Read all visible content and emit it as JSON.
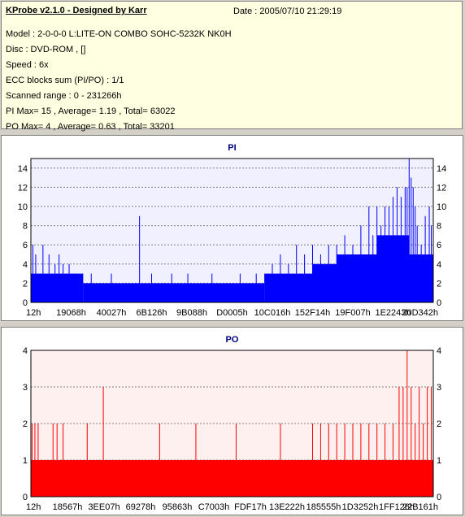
{
  "info": {
    "title": "KProbe v2.1.0 - Designed by Karr",
    "date": "Date : 2005/07/10 21:29:19",
    "lines": [
      "Model : 2-0-0-0 L:LITE-ON COMBO SOHC-5232K NK0H",
      "Disc : DVD-ROM ,  []",
      "Speed : 6x",
      "ECC blocks sum (PI/PO) : 1/1",
      "Scanned range : 0 - 231266h",
      "PI Max= 15 , Average= 1.19 , Total= 63022",
      "PO Max= 4 , Average= 0.63 , Total= 33201"
    ]
  },
  "colors": {
    "pi_bar": "#0000ff",
    "po_bar": "#ff0000",
    "pi_bg": "#f0f0ff",
    "po_bg": "#fff0f0",
    "title": "#000080"
  },
  "chart_data": [
    {
      "type": "bar",
      "title": "PI",
      "ylim": [
        0,
        15
      ],
      "y_ticks": [
        "0",
        "2",
        "4",
        "6",
        "8",
        "10",
        "12",
        "14"
      ],
      "x_ticks": [
        "12h",
        "19068h",
        "40027h",
        "6B126h",
        "9B088h",
        "D0005h",
        "10C016h",
        "152F14h",
        "19F007h",
        "1E2243h",
        "20D342h"
      ],
      "grid": true,
      "baseline_segments": [
        {
          "from": 0.0,
          "to": 0.06,
          "value": 3
        },
        {
          "from": 0.06,
          "to": 0.13,
          "value": 3
        },
        {
          "from": 0.13,
          "to": 0.52,
          "value": 2
        },
        {
          "from": 0.52,
          "to": 0.58,
          "value": 2
        },
        {
          "from": 0.58,
          "to": 0.7,
          "value": 3
        },
        {
          "from": 0.7,
          "to": 0.76,
          "value": 4
        },
        {
          "from": 0.76,
          "to": 0.86,
          "value": 5
        },
        {
          "from": 0.86,
          "to": 0.94,
          "value": 7
        },
        {
          "from": 0.94,
          "to": 1.0,
          "value": 5
        }
      ],
      "spikes": [
        {
          "x": 0.005,
          "value": 6
        },
        {
          "x": 0.012,
          "value": 5
        },
        {
          "x": 0.03,
          "value": 6
        },
        {
          "x": 0.045,
          "value": 5
        },
        {
          "x": 0.06,
          "value": 4
        },
        {
          "x": 0.07,
          "value": 5
        },
        {
          "x": 0.08,
          "value": 4
        },
        {
          "x": 0.095,
          "value": 4
        },
        {
          "x": 0.11,
          "value": 3
        },
        {
          "x": 0.15,
          "value": 3
        },
        {
          "x": 0.2,
          "value": 3
        },
        {
          "x": 0.27,
          "value": 9
        },
        {
          "x": 0.3,
          "value": 3
        },
        {
          "x": 0.35,
          "value": 3
        },
        {
          "x": 0.39,
          "value": 3
        },
        {
          "x": 0.45,
          "value": 3
        },
        {
          "x": 0.52,
          "value": 3
        },
        {
          "x": 0.56,
          "value": 3
        },
        {
          "x": 0.6,
          "value": 4
        },
        {
          "x": 0.62,
          "value": 5
        },
        {
          "x": 0.64,
          "value": 4
        },
        {
          "x": 0.66,
          "value": 6
        },
        {
          "x": 0.68,
          "value": 5
        },
        {
          "x": 0.7,
          "value": 6
        },
        {
          "x": 0.72,
          "value": 5
        },
        {
          "x": 0.74,
          "value": 6
        },
        {
          "x": 0.76,
          "value": 6
        },
        {
          "x": 0.78,
          "value": 7
        },
        {
          "x": 0.8,
          "value": 6
        },
        {
          "x": 0.82,
          "value": 8
        },
        {
          "x": 0.84,
          "value": 10
        },
        {
          "x": 0.85,
          "value": 7
        },
        {
          "x": 0.86,
          "value": 10
        },
        {
          "x": 0.87,
          "value": 8
        },
        {
          "x": 0.88,
          "value": 10
        },
        {
          "x": 0.89,
          "value": 10
        },
        {
          "x": 0.9,
          "value": 11
        },
        {
          "x": 0.91,
          "value": 12
        },
        {
          "x": 0.92,
          "value": 11
        },
        {
          "x": 0.93,
          "value": 12
        },
        {
          "x": 0.935,
          "value": 12
        },
        {
          "x": 0.94,
          "value": 15
        },
        {
          "x": 0.945,
          "value": 13
        },
        {
          "x": 0.95,
          "value": 12
        },
        {
          "x": 0.955,
          "value": 10
        },
        {
          "x": 0.96,
          "value": 8
        },
        {
          "x": 0.97,
          "value": 6
        },
        {
          "x": 0.98,
          "value": 9
        },
        {
          "x": 0.99,
          "value": 10
        },
        {
          "x": 0.995,
          "value": 8
        }
      ]
    },
    {
      "type": "bar",
      "title": "PO",
      "ylim": [
        0,
        4
      ],
      "y_ticks": [
        "0",
        "1",
        "2",
        "3",
        "4"
      ],
      "x_ticks": [
        "12h",
        "18567h",
        "3EE07h",
        "69278h",
        "95863h",
        "C7003h",
        "FDF17h",
        "13E222h",
        "185555h",
        "1D3252h",
        "1FF126h",
        "22B161h"
      ],
      "grid": true,
      "baseline_segments": [
        {
          "from": 0.0,
          "to": 1.0,
          "value": 1
        }
      ],
      "spikes": [
        {
          "x": 0.003,
          "value": 2
        },
        {
          "x": 0.01,
          "value": 2
        },
        {
          "x": 0.018,
          "value": 2
        },
        {
          "x": 0.055,
          "value": 2
        },
        {
          "x": 0.065,
          "value": 2
        },
        {
          "x": 0.08,
          "value": 2
        },
        {
          "x": 0.14,
          "value": 2
        },
        {
          "x": 0.18,
          "value": 3
        },
        {
          "x": 0.32,
          "value": 2
        },
        {
          "x": 0.41,
          "value": 2
        },
        {
          "x": 0.51,
          "value": 2
        },
        {
          "x": 0.62,
          "value": 2
        },
        {
          "x": 0.7,
          "value": 2
        },
        {
          "x": 0.72,
          "value": 2
        },
        {
          "x": 0.74,
          "value": 2
        },
        {
          "x": 0.76,
          "value": 2
        },
        {
          "x": 0.78,
          "value": 2
        },
        {
          "x": 0.8,
          "value": 2
        },
        {
          "x": 0.82,
          "value": 2
        },
        {
          "x": 0.84,
          "value": 2
        },
        {
          "x": 0.86,
          "value": 2
        },
        {
          "x": 0.88,
          "value": 2
        },
        {
          "x": 0.9,
          "value": 2
        },
        {
          "x": 0.915,
          "value": 3
        },
        {
          "x": 0.925,
          "value": 3
        },
        {
          "x": 0.935,
          "value": 4
        },
        {
          "x": 0.945,
          "value": 3
        },
        {
          "x": 0.955,
          "value": 2
        },
        {
          "x": 0.965,
          "value": 3
        },
        {
          "x": 0.975,
          "value": 2
        },
        {
          "x": 0.985,
          "value": 3
        },
        {
          "x": 0.995,
          "value": 3
        }
      ]
    }
  ]
}
